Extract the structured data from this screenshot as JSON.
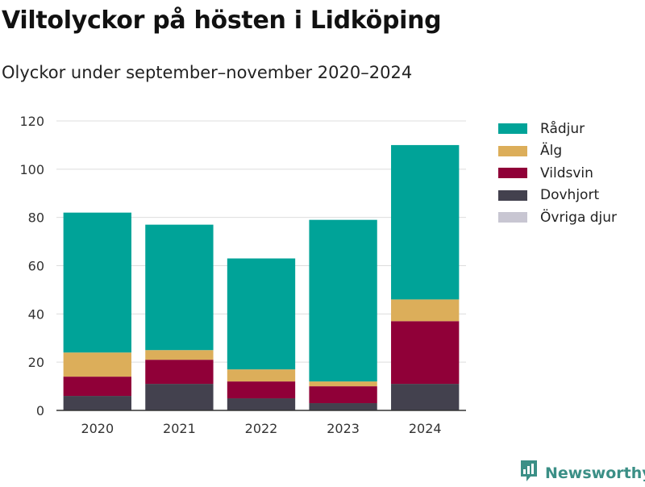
{
  "header": {
    "title": "Viltolyckor på hösten i Lidköping",
    "subtitle": "Olyckor under september–november 2020–2024"
  },
  "brand": {
    "name": "Newsworthy",
    "icon": "newsworthy-logo-icon",
    "color": "#3b8f86"
  },
  "chart_data": {
    "type": "bar",
    "stacked": true,
    "categories": [
      "2020",
      "2021",
      "2022",
      "2023",
      "2024"
    ],
    "series": [
      {
        "name": "Övriga djur",
        "color": "#c8c6d2",
        "values": [
          0,
          0,
          0,
          0,
          0
        ]
      },
      {
        "name": "Dovhjort",
        "color": "#43414e",
        "values": [
          6,
          11,
          5,
          3,
          11
        ]
      },
      {
        "name": "Vildsvin",
        "color": "#900038",
        "values": [
          8,
          10,
          7,
          7,
          26
        ]
      },
      {
        "name": "Älg",
        "color": "#dcae5a",
        "values": [
          10,
          4,
          5,
          2,
          9
        ]
      },
      {
        "name": "Rådjur",
        "color": "#00a398",
        "values": [
          58,
          52,
          46,
          67,
          64
        ]
      }
    ],
    "legend_order": [
      "Rådjur",
      "Älg",
      "Vildsvin",
      "Dovhjort",
      "Övriga djur"
    ],
    "legend_position": "right",
    "ylim": [
      0,
      120
    ],
    "yticks": [
      0,
      20,
      40,
      60,
      80,
      100,
      120
    ],
    "grid": "horizontal",
    "xlabel": "",
    "ylabel": ""
  }
}
